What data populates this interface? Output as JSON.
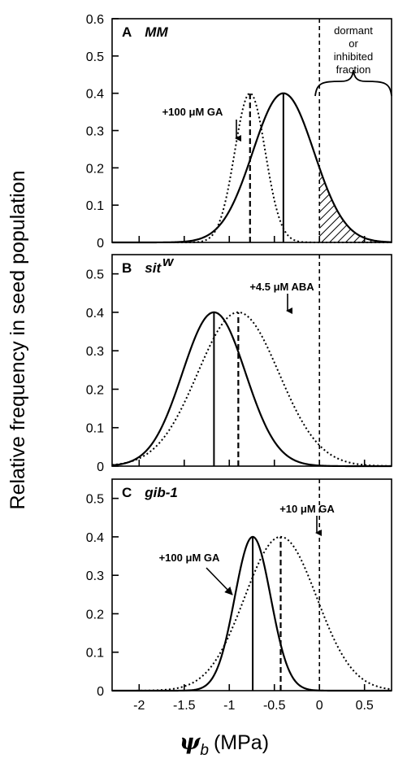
{
  "chart_data": {
    "type": "line",
    "ylabel": "Relative frequency in seed population",
    "xlabel_symbol": "ψ",
    "xlabel_subscript": "b",
    "xlabel_unit": "(MPa)",
    "xlim": [
      -2.3,
      0.8
    ],
    "x_ticks": [
      "-2",
      "-1.5",
      "-1",
      "-0.5",
      "0",
      "0.5"
    ],
    "x_tick_values": [
      -2,
      -1.5,
      -1,
      -0.5,
      0,
      0.5
    ],
    "y_tick_values": [
      0,
      0.1,
      0.2,
      0.3,
      0.4,
      0.5,
      0.6
    ],
    "y_tick_labels": [
      "0",
      "0.1",
      "0.2",
      "0.3",
      "0.4",
      "0.5",
      "0.6"
    ],
    "top_panel_ylim": [
      0,
      0.6
    ],
    "lower_panel_ylim": [
      0,
      0.55
    ],
    "threshold_x": 0,
    "shaded_region_note": [
      "dormant",
      "or",
      "inhibited",
      "fraction"
    ],
    "panels": [
      {
        "letter": "A",
        "genotype": "MM",
        "genotype_superscript": "",
        "series": [
          {
            "style": "solid",
            "peak": 0.4,
            "mean": -0.4,
            "sd": 0.34
          },
          {
            "style": "dotted",
            "label": "+100 μM GA",
            "peak": 0.4,
            "mean": -0.77,
            "sd": 0.17
          }
        ]
      },
      {
        "letter": "B",
        "genotype": "sit",
        "genotype_superscript": "w",
        "series": [
          {
            "style": "solid",
            "peak": 0.4,
            "mean": -1.17,
            "sd": 0.35
          },
          {
            "style": "dotted",
            "label": "+4.5 μM ABA",
            "peak": 0.4,
            "mean": -0.9,
            "sd": 0.45
          }
        ]
      },
      {
        "letter": "C",
        "genotype": "gib-1",
        "genotype_superscript": "",
        "series": [
          {
            "style": "solid",
            "label": "+100 μM GA",
            "peak": 0.4,
            "mean": -0.74,
            "sd": 0.2
          },
          {
            "style": "dotted",
            "label": "+10 μM GA",
            "peak": 0.4,
            "mean": -0.43,
            "sd": 0.4
          }
        ]
      }
    ]
  }
}
